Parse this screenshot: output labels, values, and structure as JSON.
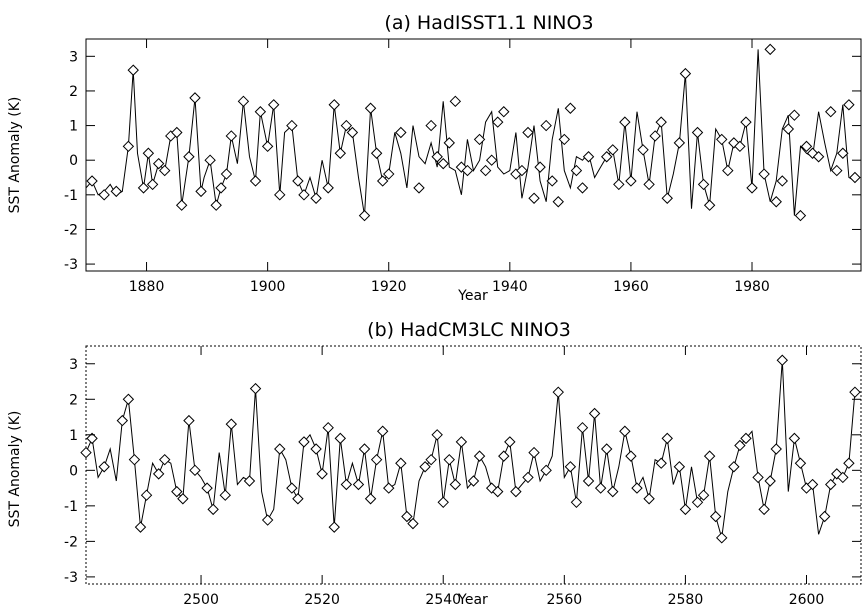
{
  "chart_data": [
    {
      "type": "line",
      "title": "(a) HadISST1.1 NINO3",
      "xlabel": "Year",
      "ylabel": "SST Anomaly (K)",
      "xlim": [
        1870,
        1998
      ],
      "ylim": [
        -3.2,
        3.5
      ],
      "xticks": [
        1880,
        1900,
        1920,
        1940,
        1960,
        1980
      ],
      "yticks": [
        -3,
        -2,
        -1,
        0,
        1,
        2,
        3
      ],
      "grid": false,
      "series": [
        {
          "marker": "line",
          "x": [
            1870,
            1871,
            1872,
            1873,
            1874,
            1875,
            1876,
            1877,
            1877.8,
            1878.5,
            1879.5,
            1880.3,
            1881,
            1882,
            1883,
            1884,
            1885,
            1885.8,
            1887,
            1888,
            1889,
            1889.5,
            1890.5,
            1891.5,
            1892.3,
            1893.2,
            1894,
            1895,
            1896,
            1897,
            1898,
            1898.8,
            1900,
            1901,
            1902,
            1902.8,
            1904,
            1905,
            1906,
            1907,
            1908,
            1909,
            1910,
            1911,
            1912,
            1913,
            1914,
            1915,
            1916,
            1917,
            1918,
            1919,
            1920,
            1921,
            1922,
            1923,
            1924,
            1925,
            1926,
            1927,
            1928,
            1929,
            1930,
            1931,
            1932,
            1933,
            1934,
            1935,
            1936,
            1937,
            1938,
            1939,
            1940,
            1941,
            1942,
            1943,
            1944,
            1945,
            1946,
            1947,
            1948,
            1949,
            1950,
            1951,
            1952,
            1953,
            1954,
            1955,
            1956,
            1957,
            1958,
            1959,
            1960,
            1961,
            1962,
            1963,
            1964,
            1965,
            1966,
            1967,
            1968,
            1969,
            1970,
            1971,
            1972,
            1973,
            1974,
            1975,
            1976,
            1977,
            1978,
            1979,
            1980,
            1981,
            1982,
            1983,
            1984,
            1985,
            1986,
            1987,
            1988,
            1989,
            1990,
            1991,
            1992,
            1993,
            1994,
            1995,
            1996,
            1997
          ],
          "y": [
            -0.8,
            -0.6,
            -1.0,
            -0.9,
            -0.7,
            -1.0,
            -0.9,
            0.4,
            2.6,
            0.2,
            -0.8,
            0.2,
            -0.7,
            -0.1,
            -0.3,
            0.7,
            0.8,
            -1.3,
            0.1,
            1.8,
            -0.9,
            -0.5,
            0.0,
            -1.3,
            -0.8,
            -0.4,
            0.7,
            -0.1,
            1.7,
            0.1,
            -0.6,
            1.4,
            0.4,
            1.6,
            -1.0,
            0.8,
            1.0,
            -0.6,
            -1.0,
            -0.5,
            -1.1,
            0.0,
            -0.8,
            1.6,
            0.2,
            1.0,
            0.8,
            -0.5,
            -1.6,
            1.5,
            0.2,
            -0.6,
            -0.4,
            0.8,
            0.2,
            -0.8,
            1.0,
            0.1,
            -0.1,
            0.5,
            -0.2,
            1.7,
            -0.2,
            -0.3,
            -1.0,
            0.6,
            -0.3,
            0.0,
            1.1,
            1.4,
            -0.2,
            -0.4,
            -0.3,
            0.8,
            -1.1,
            -0.2,
            1.0,
            -0.6,
            -1.2,
            0.6,
            1.5,
            -0.3,
            -0.8,
            0.1,
            0.0,
            0.2,
            -0.5,
            -0.2,
            0.1,
            0.3,
            -0.7,
            1.1,
            -0.6,
            1.4,
            0.3,
            -0.7,
            0.7,
            1.1,
            -1.1,
            -0.4,
            0.5,
            2.5,
            -1.4,
            0.8,
            -0.7,
            -1.3,
            0.9,
            0.6,
            -0.3,
            0.5,
            0.4,
            1.1,
            -0.8,
            3.2,
            -0.4,
            -1.2,
            -0.6,
            0.9,
            1.3,
            -1.6,
            0.4,
            0.2,
            0.1,
            1.4,
            0.5,
            -0.3,
            0.2,
            1.6,
            -0.5,
            -0.6
          ]
        },
        {
          "marker": "diamond",
          "x": [
            1871,
            1873,
            1875,
            1877,
            1877.8,
            1879.5,
            1880.3,
            1881,
            1882,
            1883,
            1884,
            1885,
            1885.8,
            1887,
            1888,
            1889,
            1890.5,
            1891.5,
            1892.3,
            1893.2,
            1894,
            1896,
            1898,
            1898.8,
            1900,
            1901,
            1902,
            1904,
            1905,
            1906,
            1908,
            1910,
            1911,
            1912,
            1913,
            1914,
            1916,
            1917,
            1918,
            1919,
            1920,
            1922,
            1925,
            1927,
            1928,
            1929,
            1930,
            1931,
            1932,
            1933,
            1935,
            1936,
            1937,
            1938,
            1939,
            1941,
            1942,
            1943,
            1944,
            1945,
            1946,
            1947,
            1948,
            1949,
            1950,
            1951,
            1952,
            1953,
            1956,
            1957,
            1958,
            1959,
            1960,
            1962,
            1963,
            1964,
            1965,
            1966,
            1968,
            1969,
            1971,
            1972,
            1973,
            1975,
            1976,
            1977,
            1978,
            1979,
            1980,
            1982,
            1983,
            1984,
            1985,
            1986,
            1987,
            1988,
            1989,
            1990,
            1991,
            1993,
            1994,
            1995,
            1996,
            1997
          ],
          "y": [
            -0.6,
            -1.0,
            -0.9,
            0.4,
            2.6,
            -0.8,
            0.2,
            -0.7,
            -0.1,
            -0.3,
            0.7,
            0.8,
            -1.3,
            0.1,
            1.8,
            -0.9,
            0.0,
            -1.3,
            -0.8,
            -0.4,
            0.7,
            1.7,
            -0.6,
            1.4,
            0.4,
            1.6,
            -1.0,
            1.0,
            -0.6,
            -1.0,
            -1.1,
            -0.8,
            1.6,
            0.2,
            1.0,
            0.8,
            -1.6,
            1.5,
            0.2,
            -0.6,
            -0.4,
            0.8,
            -0.8,
            1.0,
            0.1,
            -0.1,
            0.5,
            1.7,
            -0.2,
            -0.3,
            0.6,
            -0.3,
            0.0,
            1.1,
            1.4,
            -0.4,
            -0.3,
            0.8,
            -1.1,
            -0.2,
            1.0,
            -0.6,
            -1.2,
            0.6,
            1.5,
            -0.3,
            -0.8,
            0.1,
            0.1,
            0.3,
            -0.7,
            1.1,
            -0.6,
            0.3,
            -0.7,
            0.7,
            1.1,
            -1.1,
            0.5,
            2.5,
            0.8,
            -0.7,
            -1.3,
            0.6,
            -0.3,
            0.5,
            0.4,
            1.1,
            -0.8,
            -0.4,
            3.2,
            -1.2,
            -0.6,
            0.9,
            1.3,
            -1.6,
            0.4,
            0.2,
            0.1,
            1.4,
            -0.3,
            0.2,
            1.6,
            -0.5
          ]
        }
      ]
    },
    {
      "type": "line",
      "title": "(b) HadCM3LC NINO3",
      "xlabel": "Year",
      "ylabel": "SST Anomaly (K)",
      "xlim": [
        2481,
        2609
      ],
      "ylim": [
        -3.2,
        3.5
      ],
      "xticks": [
        2500,
        2520,
        2540,
        2560,
        2580,
        2600
      ],
      "yticks": [
        -3,
        -2,
        -1,
        0,
        1,
        2,
        3
      ],
      "grid": false,
      "series": [
        {
          "marker": "line",
          "x": [
            2481,
            2482,
            2483,
            2484,
            2485,
            2486,
            2487,
            2488,
            2489,
            2490,
            2491,
            2492,
            2493,
            2494,
            2495,
            2496,
            2497,
            2498,
            2499,
            2500,
            2501,
            2502,
            2503,
            2504,
            2505,
            2506,
            2507,
            2508,
            2509,
            2510,
            2511,
            2512,
            2513,
            2514,
            2515,
            2516,
            2517,
            2518,
            2519,
            2520,
            2521,
            2522,
            2523,
            2524,
            2525,
            2526,
            2527,
            2528,
            2529,
            2530,
            2531,
            2532,
            2533,
            2534,
            2535,
            2536,
            2537,
            2538,
            2539,
            2540,
            2541,
            2542,
            2543,
            2544,
            2545,
            2546,
            2547,
            2548,
            2549,
            2550,
            2551,
            2552,
            2553,
            2554,
            2555,
            2556,
            2557,
            2558,
            2559,
            2560,
            2561,
            2562,
            2563,
            2564,
            2565,
            2566,
            2567,
            2568,
            2569,
            2570,
            2571,
            2572,
            2573,
            2574,
            2575,
            2576,
            2577,
            2578,
            2579,
            2580,
            2581,
            2582,
            2583,
            2584,
            2585,
            2586,
            2587,
            2588,
            2589,
            2590,
            2591,
            2592,
            2593,
            2594,
            2595,
            2596,
            2597,
            2598,
            2599,
            2600,
            2601,
            2602,
            2603,
            2604,
            2605,
            2606,
            2607,
            2608
          ],
          "y": [
            0.5,
            0.9,
            -0.2,
            0.1,
            0.6,
            -0.3,
            1.4,
            2.0,
            0.3,
            -1.6,
            -0.7,
            0.2,
            -0.1,
            0.3,
            0.2,
            -0.6,
            -0.8,
            1.4,
            0.0,
            -0.2,
            -0.5,
            -1.1,
            0.5,
            -0.7,
            1.3,
            -0.4,
            -0.2,
            -0.3,
            2.3,
            -0.6,
            -1.4,
            -1.1,
            0.6,
            0.3,
            -0.5,
            -0.8,
            0.8,
            1.0,
            0.6,
            -0.1,
            1.2,
            -1.6,
            0.9,
            -0.4,
            0.2,
            -0.4,
            0.6,
            -0.8,
            0.3,
            1.1,
            -0.5,
            -0.4,
            0.2,
            -1.3,
            -1.5,
            -0.3,
            0.1,
            0.3,
            1.0,
            -0.9,
            0.3,
            -0.4,
            0.8,
            -0.5,
            -0.3,
            0.4,
            0.1,
            -0.5,
            -0.6,
            0.4,
            0.8,
            -0.6,
            -0.4,
            -0.2,
            0.5,
            -0.3,
            0.0,
            0.4,
            2.2,
            -0.2,
            0.1,
            -0.9,
            1.2,
            -0.3,
            1.6,
            -0.5,
            0.6,
            -0.6,
            0.1,
            1.1,
            0.4,
            -0.5,
            -0.2,
            -0.8,
            0.3,
            0.2,
            0.9,
            -0.4,
            0.1,
            -1.1,
            0.1,
            -0.9,
            -0.7,
            0.4,
            -1.3,
            -1.9,
            -0.6,
            0.1,
            0.7,
            0.9,
            1.1,
            -0.2,
            -1.1,
            -0.3,
            0.6,
            3.1,
            -0.6,
            0.9,
            0.2,
            -0.5,
            -0.4,
            -1.8,
            -1.3,
            -0.4,
            -0.1,
            -0.2,
            0.2,
            2.2
          ]
        },
        {
          "marker": "diamond",
          "x": [
            2481,
            2482,
            2484,
            2487,
            2488,
            2489,
            2490,
            2491,
            2493,
            2494,
            2496,
            2497,
            2498,
            2499,
            2501,
            2502,
            2504,
            2505,
            2508,
            2509,
            2511,
            2513,
            2515,
            2516,
            2517,
            2519,
            2520,
            2521,
            2522,
            2523,
            2524,
            2526,
            2527,
            2528,
            2529,
            2530,
            2531,
            2533,
            2534,
            2535,
            2537,
            2538,
            2539,
            2540,
            2541,
            2542,
            2543,
            2545,
            2546,
            2548,
            2549,
            2550,
            2551,
            2552,
            2554,
            2555,
            2557,
            2559,
            2561,
            2562,
            2563,
            2564,
            2565,
            2566,
            2567,
            2568,
            2570,
            2571,
            2572,
            2574,
            2576,
            2577,
            2579,
            2580,
            2582,
            2583,
            2584,
            2585,
            2586,
            2588,
            2589,
            2590,
            2592,
            2593,
            2594,
            2595,
            2596,
            2598,
            2599,
            2600,
            2601,
            2603,
            2604,
            2605,
            2606,
            2607,
            2608
          ],
          "y": [
            0.5,
            0.9,
            0.1,
            1.4,
            2.0,
            0.3,
            -1.6,
            -0.7,
            -0.1,
            0.3,
            -0.6,
            -0.8,
            1.4,
            0.0,
            -0.5,
            -1.1,
            -0.7,
            1.3,
            -0.3,
            2.3,
            -1.4,
            0.6,
            -0.5,
            -0.8,
            0.8,
            0.6,
            -0.1,
            1.2,
            -1.6,
            0.9,
            -0.4,
            -0.4,
            0.6,
            -0.8,
            0.3,
            1.1,
            -0.5,
            0.2,
            -1.3,
            -1.5,
            0.1,
            0.3,
            1.0,
            -0.9,
            0.3,
            -0.4,
            0.8,
            -0.3,
            0.4,
            -0.5,
            -0.6,
            0.4,
            0.8,
            -0.6,
            -0.2,
            0.5,
            0.0,
            2.2,
            0.1,
            -0.9,
            1.2,
            -0.3,
            1.6,
            -0.5,
            0.6,
            -0.6,
            1.1,
            0.4,
            -0.5,
            -0.8,
            0.2,
            0.9,
            0.1,
            -1.1,
            -0.9,
            -0.7,
            0.4,
            -1.3,
            -1.9,
            0.1,
            0.7,
            0.9,
            -0.2,
            -1.1,
            -0.3,
            0.6,
            3.1,
            0.9,
            0.2,
            -0.5,
            -0.4,
            -1.3,
            -0.4,
            -0.1,
            -0.2,
            0.2,
            2.2
          ]
        }
      ]
    }
  ]
}
